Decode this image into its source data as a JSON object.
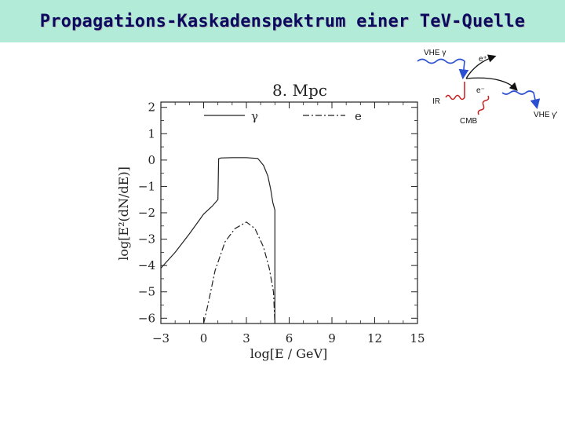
{
  "header": {
    "title": "Propagations-Kaskadenspektrum einer TeV-Quelle"
  },
  "chart_data": {
    "type": "line",
    "title": "8. Mpc",
    "xlabel": "log[E / GeV]",
    "ylabel": "log[E²(dN/dE)]",
    "xlim": [
      -3,
      15
    ],
    "ylim": [
      -6.2,
      2.2
    ],
    "xticks": [
      "−3",
      "0",
      "3",
      "6",
      "9",
      "12",
      "15"
    ],
    "yticks": [
      "2",
      "1",
      "0",
      "−1",
      "−2",
      "−3",
      "−4",
      "−5",
      "−6"
    ],
    "legend_position": "top",
    "series": [
      {
        "name": "γ",
        "style": "solid",
        "x": [
          -3,
          -2,
          -1,
          0,
          0.6,
          1.0,
          1.05,
          1.2,
          2.0,
          3.0,
          3.8,
          4.2,
          4.5,
          4.7,
          4.85,
          4.95,
          5.0,
          5.0
        ],
        "y": [
          -4.1,
          -3.5,
          -2.8,
          -2.05,
          -1.75,
          -1.5,
          0.05,
          0.08,
          0.09,
          0.09,
          0.06,
          -0.2,
          -0.6,
          -1.1,
          -1.6,
          -1.8,
          -1.9,
          -6.2
        ]
      },
      {
        "name": "e",
        "style": "dashdot",
        "x": [
          0,
          0.3,
          0.8,
          1.5,
          2.2,
          3.0,
          3.6,
          4.2,
          4.6,
          4.9,
          5.0
        ],
        "y": [
          -6.2,
          -5.5,
          -4.2,
          -3.1,
          -2.6,
          -2.35,
          -2.6,
          -3.3,
          -4.1,
          -5.0,
          -6.2
        ]
      }
    ]
  },
  "diagram": {
    "labels": {
      "vhe_in": "VHE γ",
      "e_plus": "e⁺",
      "e_minus": "e⁻",
      "ir": "IR",
      "cmb": "CMB",
      "vhe_out": "VHE γ'"
    },
    "colors": {
      "arrow_blue": "#2a4fd0",
      "wave_red": "#c81e1e",
      "line_black": "#111111"
    }
  }
}
